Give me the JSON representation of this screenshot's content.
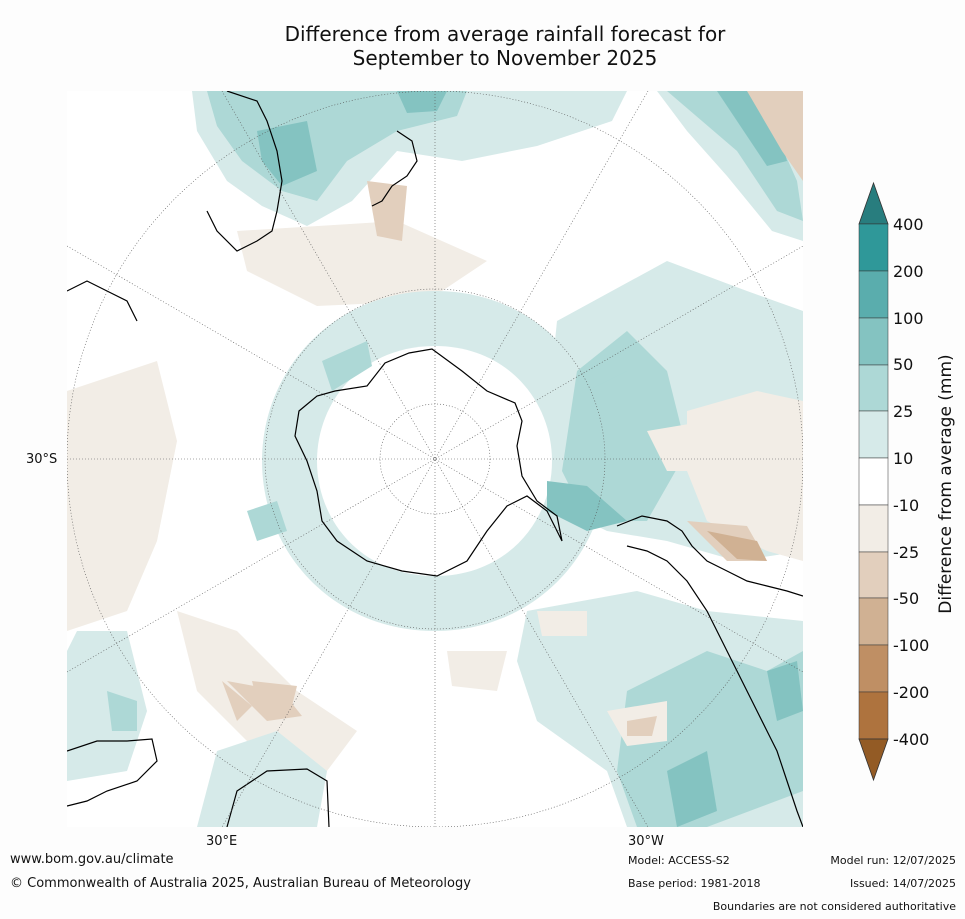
{
  "title_line1": "Difference from average rainfall forecast for",
  "title_line2": "September to November 2025",
  "map": {
    "projection": "south-polar stereographic",
    "lat_label": "30°S",
    "lon_label_e": "30°E",
    "lon_label_w": "30°W",
    "colors": {
      "wet1": "#d6eae9",
      "wet2": "#add8d6",
      "wet3": "#84c3c1",
      "wet4": "#5aadad",
      "wet5": "#2f9899",
      "dry1": "#f2ede6",
      "dry2": "#e2cfbd",
      "dry3": "#d0b193",
      "neutral": "#ffffff"
    }
  },
  "colorbar": {
    "title": "Difference from average (mm)",
    "ticks": [
      "400",
      "200",
      "100",
      "50",
      "25",
      "10",
      "-10",
      "-25",
      "-50",
      "-100",
      "-200",
      "-400"
    ],
    "colors_top_to_bottom": [
      "#287d7e",
      "#2f9899",
      "#5aadad",
      "#84c3c1",
      "#add8d6",
      "#d6eae9",
      "#ffffff",
      "#f2ede6",
      "#e2cfbd",
      "#d0b193",
      "#bf8f64",
      "#ae733e",
      "#935b25"
    ]
  },
  "footer": {
    "url": "www.bom.gov.au/climate",
    "copyright": "© Commonwealth of Australia 2025, Australian Bureau of Meteorology",
    "model": "Model: ACCESS-S2",
    "base_period": "Base period: 1981-2018",
    "model_run": "Model run: 12/07/2025",
    "issued": "Issued: 14/07/2025",
    "disclaimer": "Boundaries are not considered authoritative"
  }
}
